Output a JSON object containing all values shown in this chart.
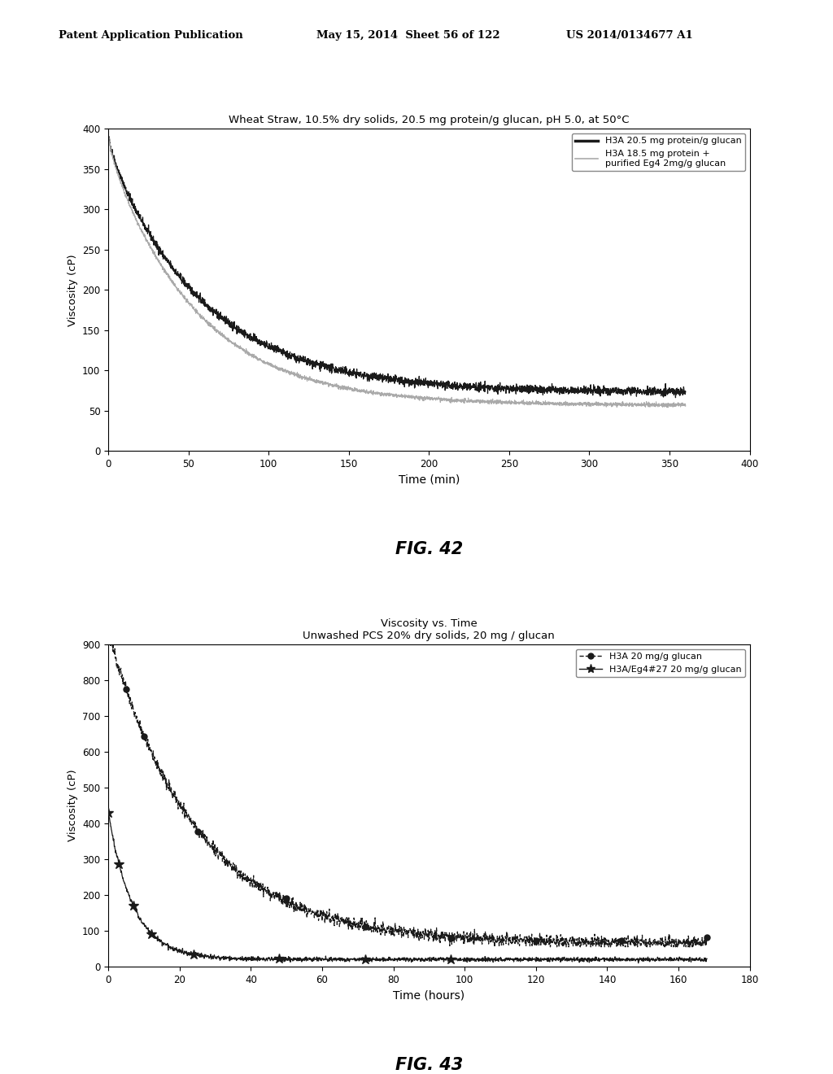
{
  "fig42": {
    "title": "Wheat Straw, 10.5% dry solids, 20.5 mg protein/g glucan, pH 5.0, at 50°C",
    "xlabel": "Time (min)",
    "ylabel": "Viscosity (cP)",
    "xlim": [
      0,
      400
    ],
    "ylim": [
      0,
      400
    ],
    "xticks": [
      0,
      50,
      100,
      150,
      200,
      250,
      300,
      350,
      400
    ],
    "yticks": [
      0,
      50,
      100,
      150,
      200,
      250,
      300,
      350,
      400
    ],
    "legend1": "H3A 20.5 mg protein/g glucan",
    "legend2": "H3A 18.5 mg protein +\npurified Eg4 2mg/g glucan",
    "fig_label": "FIG. 42",
    "line1_start": 390,
    "line1_end": 73,
    "line1_tau1": 4,
    "line1_tau2": 60,
    "line2_start": 390,
    "line2_end": 57,
    "line2_tau1": 3.5,
    "line2_tau2": 55
  },
  "fig43": {
    "title1": "Viscosity vs. Time",
    "title2": "Unwashed PCS 20% dry solids, 20 mg / glucan",
    "xlabel": "Time (hours)",
    "ylabel": "Viscosity (cP)",
    "xlim": [
      0,
      180
    ],
    "ylim": [
      0,
      900
    ],
    "xticks": [
      0,
      20,
      40,
      60,
      80,
      100,
      120,
      140,
      160,
      180
    ],
    "yticks": [
      0,
      100,
      200,
      300,
      400,
      500,
      600,
      700,
      800,
      900
    ],
    "legend1": "H3A 20 mg/g glucan",
    "legend2": "H3A/Eg4#27 20 mg/g glucan",
    "fig_label": "FIG. 43"
  },
  "header": {
    "left": "Patent Application Publication",
    "middle": "May 15, 2014  Sheet 56 of 122",
    "right": "US 2014/0134677 A1"
  },
  "background_color": "#ffffff"
}
